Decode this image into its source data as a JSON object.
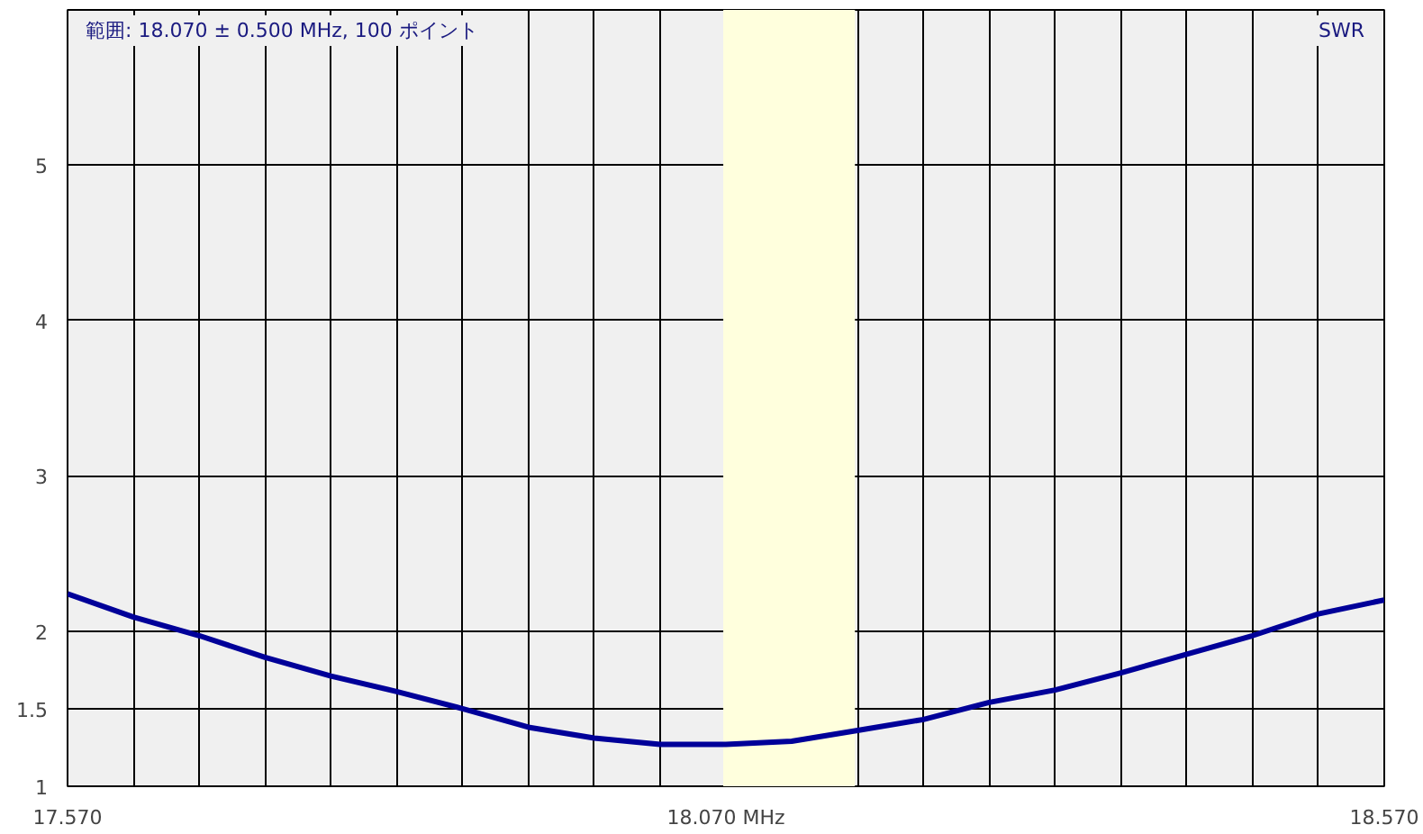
{
  "chart_data": {
    "type": "line",
    "title": "範囲: 18.070 ± 0.500 MHz, 100 ポイント",
    "ylabel": "SWR",
    "x": [
      17.57,
      17.62,
      17.67,
      17.72,
      17.77,
      17.82,
      17.87,
      17.92,
      17.97,
      18.02,
      18.07,
      18.12,
      18.17,
      18.22,
      18.27,
      18.32,
      18.37,
      18.42,
      18.47,
      18.52,
      18.57
    ],
    "series": [
      {
        "color": "#000099",
        "values": [
          2.24,
          2.09,
          1.97,
          1.83,
          1.71,
          1.61,
          1.5,
          1.38,
          1.31,
          1.27,
          1.27,
          1.29,
          1.36,
          1.43,
          1.54,
          1.62,
          1.73,
          1.85,
          1.97,
          2.11,
          2.2
        ]
      }
    ],
    "xlim": [
      17.57,
      18.57
    ],
    "xticks": [
      {
        "value": 17.57,
        "label": "17.570"
      },
      {
        "value": 17.62,
        "label": null
      },
      {
        "value": 17.67,
        "label": null
      },
      {
        "value": 17.72,
        "label": null
      },
      {
        "value": 17.77,
        "label": null
      },
      {
        "value": 17.82,
        "label": null
      },
      {
        "value": 17.87,
        "label": null
      },
      {
        "value": 17.92,
        "label": null
      },
      {
        "value": 17.97,
        "label": null
      },
      {
        "value": 18.02,
        "label": null
      },
      {
        "value": 18.07,
        "label": "18.070 MHz"
      },
      {
        "value": 18.12,
        "label": null
      },
      {
        "value": 18.17,
        "label": null
      },
      {
        "value": 18.22,
        "label": null
      },
      {
        "value": 18.27,
        "label": null
      },
      {
        "value": 18.32,
        "label": null
      },
      {
        "value": 18.37,
        "label": null
      },
      {
        "value": 18.42,
        "label": null
      },
      {
        "value": 18.47,
        "label": null
      },
      {
        "value": 18.52,
        "label": null
      },
      {
        "value": 18.57,
        "label": "18.570"
      }
    ],
    "ylim": [
      1,
      6
    ],
    "yticks": [
      1,
      1.5,
      2,
      3,
      4,
      5
    ],
    "bands": [
      {
        "axis": "x",
        "from": 18.068,
        "to": 18.168,
        "color": "#ffffdd"
      }
    ],
    "grid": true,
    "marker": "none",
    "line_style": "solid"
  }
}
